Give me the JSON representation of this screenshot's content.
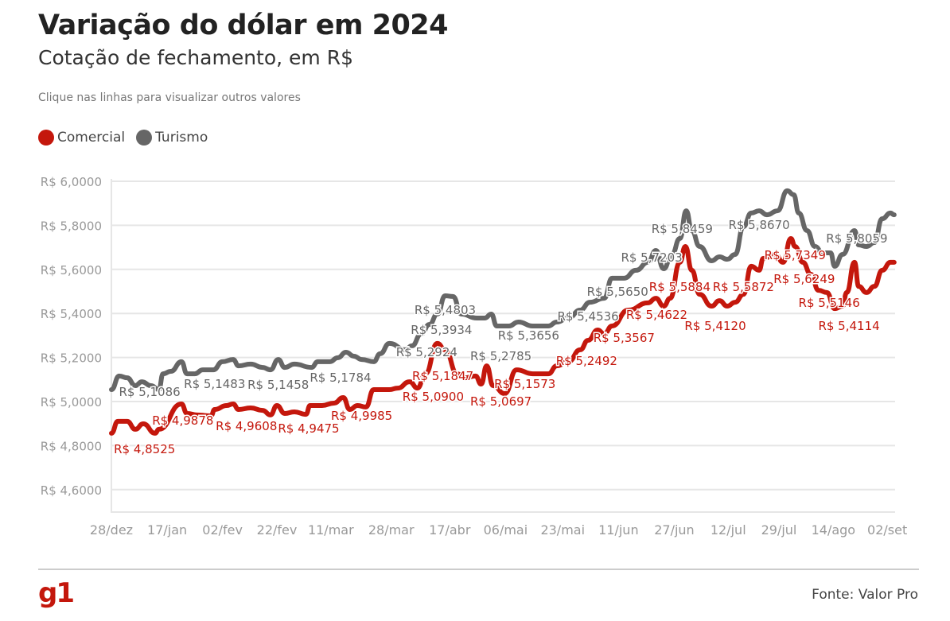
{
  "header": {
    "title": "Variação do dólar em 2024",
    "subtitle": "Cotação de fechamento, em R$",
    "note": "Clique nas linhas para visualizar outros valores"
  },
  "footer": {
    "logo": "g1",
    "source": "Fonte: Valor Pro"
  },
  "colors": {
    "comercial": "#c4170c",
    "turismo": "#666666",
    "grid": "#e6e6e6",
    "tick": "#999999"
  },
  "chart_data": {
    "type": "line",
    "title": "Variação do dólar em 2024",
    "subtitle": "Cotação de fechamento, em R$",
    "xlabel": "",
    "ylabel": "",
    "x_unit": "trading day index since 28/dez",
    "xlim": [
      0,
      170
    ],
    "ylim": [
      4.5,
      6.05
    ],
    "grid": true,
    "legend_position": "top-left",
    "yticks": [
      {
        "v": 4.6,
        "label": "R$ 4,6000"
      },
      {
        "v": 4.8,
        "label": "R$ 4,8000"
      },
      {
        "v": 5.0,
        "label": "R$ 5,0000"
      },
      {
        "v": 5.2,
        "label": "R$ 5,2000"
      },
      {
        "v": 5.4,
        "label": "R$ 5,4000"
      },
      {
        "v": 5.6,
        "label": "R$ 5,6000"
      },
      {
        "v": 5.8,
        "label": "R$ 5,8000"
      },
      {
        "v": 6.0,
        "label": "R$ 6,0000"
      }
    ],
    "xticks": [
      {
        "x": 0,
        "label": "28/dez"
      },
      {
        "x": 12.1,
        "label": "17/jan"
      },
      {
        "x": 24.1,
        "label": "02/fev"
      },
      {
        "x": 35.9,
        "label": "22/fev"
      },
      {
        "x": 47.6,
        "label": "11/mar"
      },
      {
        "x": 60.7,
        "label": "28/mar"
      },
      {
        "x": 73.4,
        "label": "17/abr"
      },
      {
        "x": 85.5,
        "label": "06/mai"
      },
      {
        "x": 97.9,
        "label": "23/mai"
      },
      {
        "x": 110,
        "label": "11/jun"
      },
      {
        "x": 122.1,
        "label": "27/jun"
      },
      {
        "x": 133.8,
        "label": "12/jul"
      },
      {
        "x": 144.8,
        "label": "29/jul"
      },
      {
        "x": 156.6,
        "label": "14/ago"
      },
      {
        "x": 168.3,
        "label": "02/set"
      }
    ],
    "series": [
      {
        "name": "Turismo",
        "key": "turismo",
        "points": [
          [
            0,
            5.054
          ],
          [
            1.7,
            5.116
          ],
          [
            3.4,
            5.108
          ],
          [
            5.2,
            5.072
          ],
          [
            6.6,
            5.09
          ],
          [
            8.6,
            5.072
          ],
          [
            10.3,
            5.054
          ],
          [
            11.2,
            5.126
          ],
          [
            12.9,
            5.137
          ],
          [
            15.2,
            5.181
          ],
          [
            16.4,
            5.126
          ],
          [
            18.1,
            5.126
          ],
          [
            19.8,
            5.144
          ],
          [
            22.1,
            5.144
          ],
          [
            24.1,
            5.181
          ],
          [
            26.4,
            5.191
          ],
          [
            27.6,
            5.162
          ],
          [
            30.2,
            5.17
          ],
          [
            32.8,
            5.155
          ],
          [
            34.5,
            5.144
          ],
          [
            36.2,
            5.191
          ],
          [
            37.6,
            5.155
          ],
          [
            39.7,
            5.17
          ],
          [
            43.4,
            5.155
          ],
          [
            44.8,
            5.181
          ],
          [
            47.4,
            5.181
          ],
          [
            49.1,
            5.199
          ],
          [
            50.9,
            5.224
          ],
          [
            52.6,
            5.206
          ],
          [
            54.3,
            5.191
          ],
          [
            56.9,
            5.181
          ],
          [
            58.3,
            5.217
          ],
          [
            60.3,
            5.264
          ],
          [
            63.8,
            5.235
          ],
          [
            65.2,
            5.253
          ],
          [
            67.2,
            5.307
          ],
          [
            69,
            5.35
          ],
          [
            70.7,
            5.397
          ],
          [
            72.4,
            5.48
          ],
          [
            74.1,
            5.477
          ],
          [
            75.9,
            5.397
          ],
          [
            79.3,
            5.379
          ],
          [
            81,
            5.379
          ],
          [
            82.4,
            5.397
          ],
          [
            83.6,
            5.343
          ],
          [
            86.2,
            5.343
          ],
          [
            88.3,
            5.361
          ],
          [
            91.4,
            5.343
          ],
          [
            94.8,
            5.343
          ],
          [
            96.6,
            5.361
          ],
          [
            99.1,
            5.379
          ],
          [
            101.7,
            5.415
          ],
          [
            103.8,
            5.451
          ],
          [
            106.9,
            5.469
          ],
          [
            108.6,
            5.56
          ],
          [
            111.2,
            5.56
          ],
          [
            113.8,
            5.596
          ],
          [
            116.4,
            5.632
          ],
          [
            118.1,
            5.686
          ],
          [
            119.8,
            5.603
          ],
          [
            121.6,
            5.668
          ],
          [
            123.3,
            5.74
          ],
          [
            124.7,
            5.866
          ],
          [
            125.9,
            5.776
          ],
          [
            127.6,
            5.704
          ],
          [
            130.2,
            5.639
          ],
          [
            131.9,
            5.657
          ],
          [
            133.6,
            5.646
          ],
          [
            135.3,
            5.668
          ],
          [
            137.1,
            5.794
          ],
          [
            138.8,
            5.856
          ],
          [
            140.5,
            5.866
          ],
          [
            142.2,
            5.848
          ],
          [
            144.5,
            5.866
          ],
          [
            146.6,
            5.957
          ],
          [
            148,
            5.939
          ],
          [
            149.1,
            5.856
          ],
          [
            150.9,
            5.776
          ],
          [
            152.6,
            5.704
          ],
          [
            154.3,
            5.675
          ],
          [
            156,
            5.675
          ],
          [
            156.9,
            5.614
          ],
          [
            158.6,
            5.668
          ],
          [
            161.2,
            5.776
          ],
          [
            162.1,
            5.711
          ],
          [
            163.8,
            5.704
          ],
          [
            165.5,
            5.722
          ],
          [
            167.2,
            5.83
          ],
          [
            169,
            5.856
          ],
          [
            169.8,
            5.848
          ]
        ],
        "labels": [
          {
            "x": 8.3,
            "y": 5.047,
            "text": "R$ 5,1086"
          },
          {
            "x": 22.4,
            "y": 5.083,
            "text": "R$ 5,1483"
          },
          {
            "x": 36.2,
            "y": 5.079,
            "text": "R$ 5,1458"
          },
          {
            "x": 49.7,
            "y": 5.112,
            "text": "R$ 5,1784"
          },
          {
            "x": 68.4,
            "y": 5.227,
            "text": "R$ 5,2924"
          },
          {
            "x": 71.6,
            "y": 5.329,
            "text": "R$ 5,3934"
          },
          {
            "x": 72.4,
            "y": 5.419,
            "text": "R$ 5,4803"
          },
          {
            "x": 84.5,
            "y": 5.209,
            "text": "R$ 5,2785"
          },
          {
            "x": 90.5,
            "y": 5.303,
            "text": "R$ 5,3656"
          },
          {
            "x": 103.4,
            "y": 5.39,
            "text": "R$ 5,4536"
          },
          {
            "x": 109.8,
            "y": 5.502,
            "text": "R$ 5,5650"
          },
          {
            "x": 117.2,
            "y": 5.657,
            "text": "R$ 5,7203"
          },
          {
            "x": 123.8,
            "y": 5.787,
            "text": "R$ 5,8459"
          },
          {
            "x": 140.5,
            "y": 5.805,
            "text": "R$ 5,8670"
          },
          {
            "x": 161.7,
            "y": 5.744,
            "text": "R$ 5,8059"
          }
        ]
      },
      {
        "name": "Comercial",
        "key": "comercial",
        "points": [
          [
            0,
            4.856
          ],
          [
            1.4,
            4.91
          ],
          [
            3.4,
            4.91
          ],
          [
            5.2,
            4.874
          ],
          [
            6.9,
            4.899
          ],
          [
            9.5,
            4.856
          ],
          [
            10.3,
            4.874
          ],
          [
            15.2,
            4.989
          ],
          [
            16.4,
            4.946
          ],
          [
            18.6,
            4.939
          ],
          [
            21.6,
            4.935
          ],
          [
            22.4,
            4.964
          ],
          [
            25,
            4.982
          ],
          [
            26.4,
            4.989
          ],
          [
            27.6,
            4.964
          ],
          [
            30.2,
            4.971
          ],
          [
            32.8,
            4.96
          ],
          [
            34.5,
            4.939
          ],
          [
            35.9,
            4.982
          ],
          [
            37.6,
            4.946
          ],
          [
            39.7,
            4.953
          ],
          [
            42.2,
            4.942
          ],
          [
            43.1,
            4.982
          ],
          [
            45.7,
            4.982
          ],
          [
            48.3,
            4.993
          ],
          [
            50.3,
            5.018
          ],
          [
            51.7,
            4.964
          ],
          [
            53.4,
            4.982
          ],
          [
            55.2,
            4.975
          ],
          [
            56.9,
            5.054
          ],
          [
            60.3,
            5.054
          ],
          [
            62.1,
            5.061
          ],
          [
            64.7,
            5.09
          ],
          [
            66.4,
            5.061
          ],
          [
            68.1,
            5.126
          ],
          [
            70.7,
            5.264
          ],
          [
            72.4,
            5.235
          ],
          [
            75,
            5.126
          ],
          [
            76.7,
            5.108
          ],
          [
            79,
            5.116
          ],
          [
            80.2,
            5.079
          ],
          [
            81.4,
            5.162
          ],
          [
            82.8,
            5.072
          ],
          [
            85.3,
            5.036
          ],
          [
            87.9,
            5.144
          ],
          [
            91.4,
            5.126
          ],
          [
            94.8,
            5.126
          ],
          [
            96.6,
            5.162
          ],
          [
            99.1,
            5.181
          ],
          [
            101.7,
            5.235
          ],
          [
            103.4,
            5.278
          ],
          [
            105.5,
            5.325
          ],
          [
            106.9,
            5.307
          ],
          [
            108.6,
            5.343
          ],
          [
            112.1,
            5.415
          ],
          [
            116.4,
            5.448
          ],
          [
            118.1,
            5.469
          ],
          [
            119.8,
            5.433
          ],
          [
            121.2,
            5.469
          ],
          [
            123.3,
            5.632
          ],
          [
            124.5,
            5.704
          ],
          [
            125.9,
            5.596
          ],
          [
            127.6,
            5.487
          ],
          [
            130.2,
            5.433
          ],
          [
            131.9,
            5.458
          ],
          [
            133.6,
            5.433
          ],
          [
            135.3,
            5.451
          ],
          [
            137.1,
            5.487
          ],
          [
            138.8,
            5.614
          ],
          [
            140.5,
            5.596
          ],
          [
            141.4,
            5.65
          ],
          [
            144,
            5.668
          ],
          [
            145.7,
            5.632
          ],
          [
            147.4,
            5.74
          ],
          [
            148.3,
            5.704
          ],
          [
            150,
            5.632
          ],
          [
            151.7,
            5.578
          ],
          [
            153.4,
            5.505
          ],
          [
            155.2,
            5.495
          ],
          [
            156.9,
            5.422
          ],
          [
            158.6,
            5.433
          ],
          [
            159.5,
            5.495
          ],
          [
            161.2,
            5.632
          ],
          [
            162.1,
            5.523
          ],
          [
            163.8,
            5.495
          ],
          [
            165.5,
            5.523
          ],
          [
            167.2,
            5.596
          ],
          [
            169,
            5.632
          ],
          [
            169.8,
            5.632
          ]
        ],
        "labels": [
          {
            "x": 7.2,
            "y": 4.787,
            "text": "R$ 4,8525"
          },
          {
            "x": 15.5,
            "y": 4.917,
            "text": "R$ 4,9878"
          },
          {
            "x": 29.3,
            "y": 4.892,
            "text": "R$ 4,9608"
          },
          {
            "x": 42.8,
            "y": 4.881,
            "text": "R$ 4,9475"
          },
          {
            "x": 54.3,
            "y": 4.939,
            "text": "R$ 4,9985"
          },
          {
            "x": 69.8,
            "y": 5.025,
            "text": "R$ 5,0900"
          },
          {
            "x": 71.9,
            "y": 5.119,
            "text": "R$ 5,1847"
          },
          {
            "x": 84.5,
            "y": 5.004,
            "text": "R$ 5,0697"
          },
          {
            "x": 89.7,
            "y": 5.083,
            "text": "R$ 5,1573"
          },
          {
            "x": 103.1,
            "y": 5.188,
            "text": "R$ 5,2492"
          },
          {
            "x": 111.2,
            "y": 5.292,
            "text": "R$ 5,3567"
          },
          {
            "x": 118.3,
            "y": 5.397,
            "text": "R$ 5,4622"
          },
          {
            "x": 123.3,
            "y": 5.523,
            "text": "R$ 5,5884"
          },
          {
            "x": 131,
            "y": 5.347,
            "text": "R$ 5,4120"
          },
          {
            "x": 137.1,
            "y": 5.523,
            "text": "R$ 5,5872"
          },
          {
            "x": 148.3,
            "y": 5.668,
            "text": "R$ 5,7349"
          },
          {
            "x": 150.3,
            "y": 5.56,
            "text": "R$ 5,6249"
          },
          {
            "x": 155.7,
            "y": 5.451,
            "text": "R$ 5,5146"
          },
          {
            "x": 160,
            "y": 5.347,
            "text": "R$ 5,4114"
          }
        ]
      }
    ]
  }
}
